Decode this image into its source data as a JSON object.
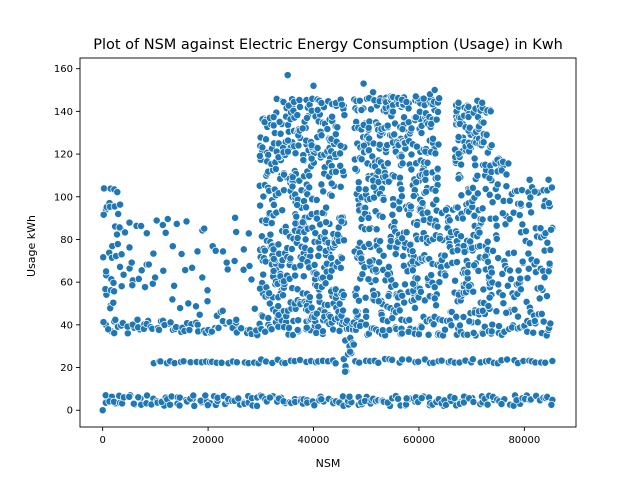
{
  "chart_data": {
    "type": "scatter",
    "title": "Plot of NSM against Electric Energy Consumption (Usage) in Kwh",
    "xlabel": "NSM",
    "ylabel": "Usage kWh",
    "xlim": [
      -4300,
      89800
    ],
    "ylim": [
      -7.85,
      165.0
    ],
    "xticks": [
      0,
      20000,
      40000,
      60000,
      80000
    ],
    "xtick_labels": [
      "0",
      "20000",
      "40000",
      "60000",
      "80000"
    ],
    "yticks": [
      0,
      20,
      40,
      60,
      80,
      100,
      120,
      140,
      160
    ],
    "ytick_labels": [
      "0",
      "20",
      "40",
      "60",
      "80",
      "100",
      "120",
      "140",
      "160"
    ],
    "grid": false,
    "marker_color": "#1f77b4",
    "marker_edge": "#ffffff",
    "x_step": 900,
    "segments": [
      {
        "x0": 0,
        "x1": 3600,
        "upper": 105,
        "bands": [
          [
            36,
            42
          ]
        ],
        "scatter_density": 0.5
      },
      {
        "x0": 3600,
        "x1": 9000,
        "upper": 92,
        "bands": [
          [
            36,
            42
          ]
        ],
        "scatter_density": 0.25
      },
      {
        "x0": 9000,
        "x1": 27900,
        "upper": 92,
        "bands": [
          [
            22,
            23
          ],
          [
            36,
            42
          ]
        ],
        "scatter_density": 0.12
      },
      {
        "x0": 27900,
        "x1": 29700,
        "upper": 83,
        "bands": [
          [
            22,
            24
          ],
          [
            35,
            42
          ]
        ],
        "scatter_density": 0.1
      },
      {
        "x0": 29700,
        "x1": 32400,
        "upper": 137,
        "bands": [
          [
            22,
            24
          ],
          [
            35,
            42
          ]
        ],
        "scatter_density": 1
      },
      {
        "x0": 32400,
        "x1": 45900,
        "upper": 146,
        "bands": [
          [
            22,
            24
          ],
          [
            35,
            42
          ]
        ],
        "scatter_density": 1
      },
      {
        "x0": 45900,
        "x1": 47700,
        "upper": 42,
        "bands": [
          [
            18,
            42
          ]
        ],
        "scatter_density": 0.6
      },
      {
        "x0": 47700,
        "x1": 63900,
        "upper": 147,
        "bands": [
          [
            22,
            24
          ],
          [
            35,
            42
          ]
        ],
        "scatter_density": 1
      },
      {
        "x0": 63900,
        "x1": 66600,
        "upper": 95,
        "bands": [
          [
            22,
            24
          ],
          [
            35,
            42
          ]
        ],
        "scatter_density": 0.7
      },
      {
        "x0": 66600,
        "x1": 73800,
        "upper": 143,
        "bands": [
          [
            22,
            24
          ],
          [
            35,
            42
          ]
        ],
        "scatter_density": 1
      },
      {
        "x0": 73800,
        "x1": 77400,
        "upper": 118,
        "bands": [
          [
            22,
            24
          ],
          [
            35,
            42
          ]
        ],
        "scatter_density": 0.6
      },
      {
        "x0": 77400,
        "x1": 85500,
        "upper": 105,
        "bands": [
          [
            22,
            24
          ],
          [
            35,
            42
          ]
        ],
        "scatter_density": 0.5
      }
    ],
    "baseline_range": [
      2,
      7
    ],
    "outliers": [
      {
        "x": 35100,
        "y": 157
      },
      {
        "x": 40000,
        "y": 152
      },
      {
        "x": 49500,
        "y": 153
      },
      {
        "x": 51300,
        "y": 149
      },
      {
        "x": 59400,
        "y": 147
      },
      {
        "x": 62100,
        "y": 148
      },
      {
        "x": 63000,
        "y": 150
      },
      {
        "x": 67500,
        "y": 144
      },
      {
        "x": 71100,
        "y": 145
      },
      {
        "x": 72000,
        "y": 144
      },
      {
        "x": 81000,
        "y": 108
      },
      {
        "x": 84600,
        "y": 108
      },
      {
        "x": 0,
        "y": 0
      }
    ]
  }
}
